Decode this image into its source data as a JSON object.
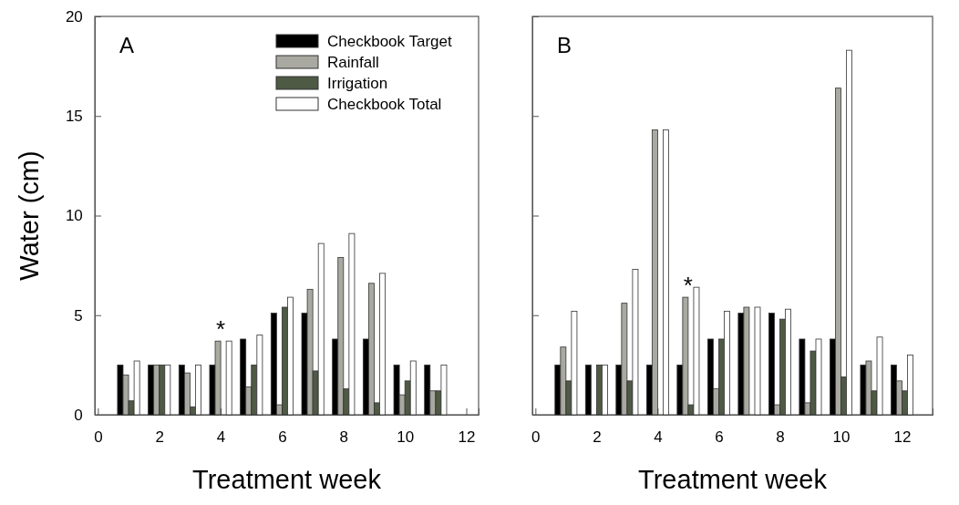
{
  "chart_data": [
    {
      "type": "bar",
      "x": [
        1,
        2,
        3,
        4,
        5,
        6,
        7,
        8,
        9,
        10,
        11
      ],
      "xlabel": "Treatment week",
      "ylabel": "Water (cm)",
      "xlim": [
        -0.1,
        12.4
      ],
      "ylim": [
        0,
        20
      ],
      "xticks": [
        0,
        2,
        4,
        6,
        8,
        10,
        12
      ],
      "yticks": [
        0,
        5,
        10,
        15,
        20
      ],
      "legend": "top right",
      "annotations": [
        "A",
        {
          "text": "*",
          "x": 4,
          "y": 3.7
        }
      ],
      "series": [
        {
          "name": "Checkbook Target",
          "color": "#000000",
          "values": [
            2.5,
            2.5,
            2.5,
            2.5,
            3.8,
            5.1,
            5.1,
            3.8,
            3.8,
            2.5,
            2.5
          ]
        },
        {
          "name": "Rainfall",
          "color": "#a9a9a2",
          "values": [
            2.0,
            2.5,
            2.1,
            3.7,
            1.4,
            0.5,
            6.3,
            7.9,
            6.6,
            1.0,
            1.2
          ]
        },
        {
          "name": "Irrigation",
          "color": "#4f5a45",
          "values": [
            0.7,
            2.5,
            0.4,
            0,
            2.5,
            5.4,
            2.2,
            1.3,
            0.6,
            1.7,
            1.2
          ]
        },
        {
          "name": "Checkbook Total",
          "color": "#ffffff",
          "values": [
            2.7,
            2.5,
            2.5,
            3.7,
            4.0,
            5.9,
            8.6,
            9.1,
            7.1,
            2.7,
            2.5
          ]
        }
      ]
    },
    {
      "type": "bar",
      "x": [
        1,
        2,
        3,
        4,
        5,
        6,
        7,
        8,
        9,
        10,
        11,
        12
      ],
      "xlabel": "Treatment week",
      "xlim": [
        -0.1,
        13
      ],
      "ylim": [
        0,
        20
      ],
      "xticks": [
        0,
        2,
        4,
        6,
        8,
        10,
        12
      ],
      "yticks": [
        0,
        5,
        10,
        15,
        20
      ],
      "tick_labels": "x",
      "annotations": [
        "B",
        {
          "text": "*",
          "x": 5,
          "y": 5.9
        }
      ],
      "series": [
        {
          "color": "#000000",
          "values": [
            2.5,
            2.5,
            2.5,
            2.5,
            2.5,
            3.8,
            5.1,
            5.1,
            3.8,
            3.8,
            2.5,
            2.5
          ]
        },
        {
          "color": "#a9a9a2",
          "values": [
            3.4,
            0,
            5.6,
            14.3,
            5.9,
            1.3,
            5.4,
            0.5,
            0.6,
            16.4,
            2.7,
            1.7
          ]
        },
        {
          "color": "#4f5a45",
          "values": [
            1.7,
            2.5,
            1.7,
            0,
            0.5,
            3.8,
            0,
            4.8,
            3.2,
            1.9,
            1.2,
            1.2
          ]
        },
        {
          "color": "#ffffff",
          "values": [
            5.2,
            2.5,
            7.3,
            14.3,
            6.4,
            5.2,
            5.4,
            5.3,
            3.8,
            18.3,
            3.9,
            3.0
          ]
        }
      ]
    }
  ]
}
